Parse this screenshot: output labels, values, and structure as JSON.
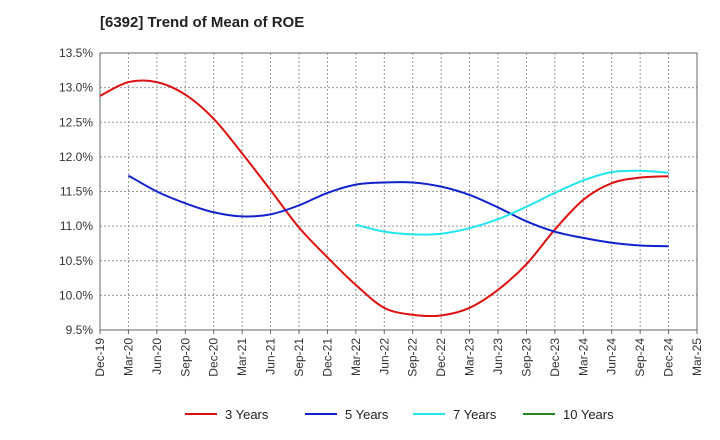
{
  "chart_data": {
    "type": "line",
    "title": "[6392]  Trend of Mean of ROE",
    "xlabel": "",
    "ylabel": "",
    "x": [
      "Dec-19",
      "Mar-20",
      "Jun-20",
      "Sep-20",
      "Dec-20",
      "Mar-21",
      "Jun-21",
      "Sep-21",
      "Dec-21",
      "Mar-22",
      "Jun-22",
      "Sep-22",
      "Dec-22",
      "Mar-23",
      "Jun-23",
      "Sep-23",
      "Dec-23",
      "Mar-24",
      "Jun-24",
      "Sep-24",
      "Dec-24",
      "Mar-25"
    ],
    "ylim": [
      9.5,
      13.5
    ],
    "yticks": [
      "9.5%",
      "10.0%",
      "10.5%",
      "11.0%",
      "11.5%",
      "12.0%",
      "12.5%",
      "13.0%",
      "13.5%"
    ],
    "grid": true,
    "legend_position": "bottom",
    "series": [
      {
        "name": "3 Years",
        "color": "#dd1111",
        "values": [
          12.88,
          13.08,
          13.08,
          12.9,
          12.55,
          12.05,
          11.52,
          10.98,
          10.55,
          10.15,
          9.82,
          9.72,
          9.71,
          9.82,
          10.08,
          10.45,
          10.95,
          11.38,
          11.62,
          11.7,
          11.72,
          null
        ]
      },
      {
        "name": "5 Years",
        "color": "#1122cc",
        "values": [
          null,
          11.73,
          11.5,
          11.33,
          11.2,
          11.14,
          11.17,
          11.3,
          11.48,
          11.6,
          11.63,
          11.63,
          11.57,
          11.45,
          11.27,
          11.07,
          10.92,
          10.83,
          10.76,
          10.72,
          10.71,
          null
        ]
      },
      {
        "name": "7 Years",
        "color": "#22e5ee",
        "values": [
          null,
          null,
          null,
          null,
          null,
          null,
          null,
          null,
          null,
          11.02,
          10.92,
          10.88,
          10.89,
          10.97,
          11.1,
          11.28,
          11.48,
          11.66,
          11.78,
          11.8,
          11.77,
          null
        ]
      },
      {
        "name": "10 Years",
        "color": "#228822",
        "values": [
          null,
          null,
          null,
          null,
          null,
          null,
          null,
          null,
          null,
          null,
          null,
          null,
          null,
          null,
          null,
          null,
          null,
          null,
          null,
          null,
          null,
          null
        ]
      }
    ]
  }
}
